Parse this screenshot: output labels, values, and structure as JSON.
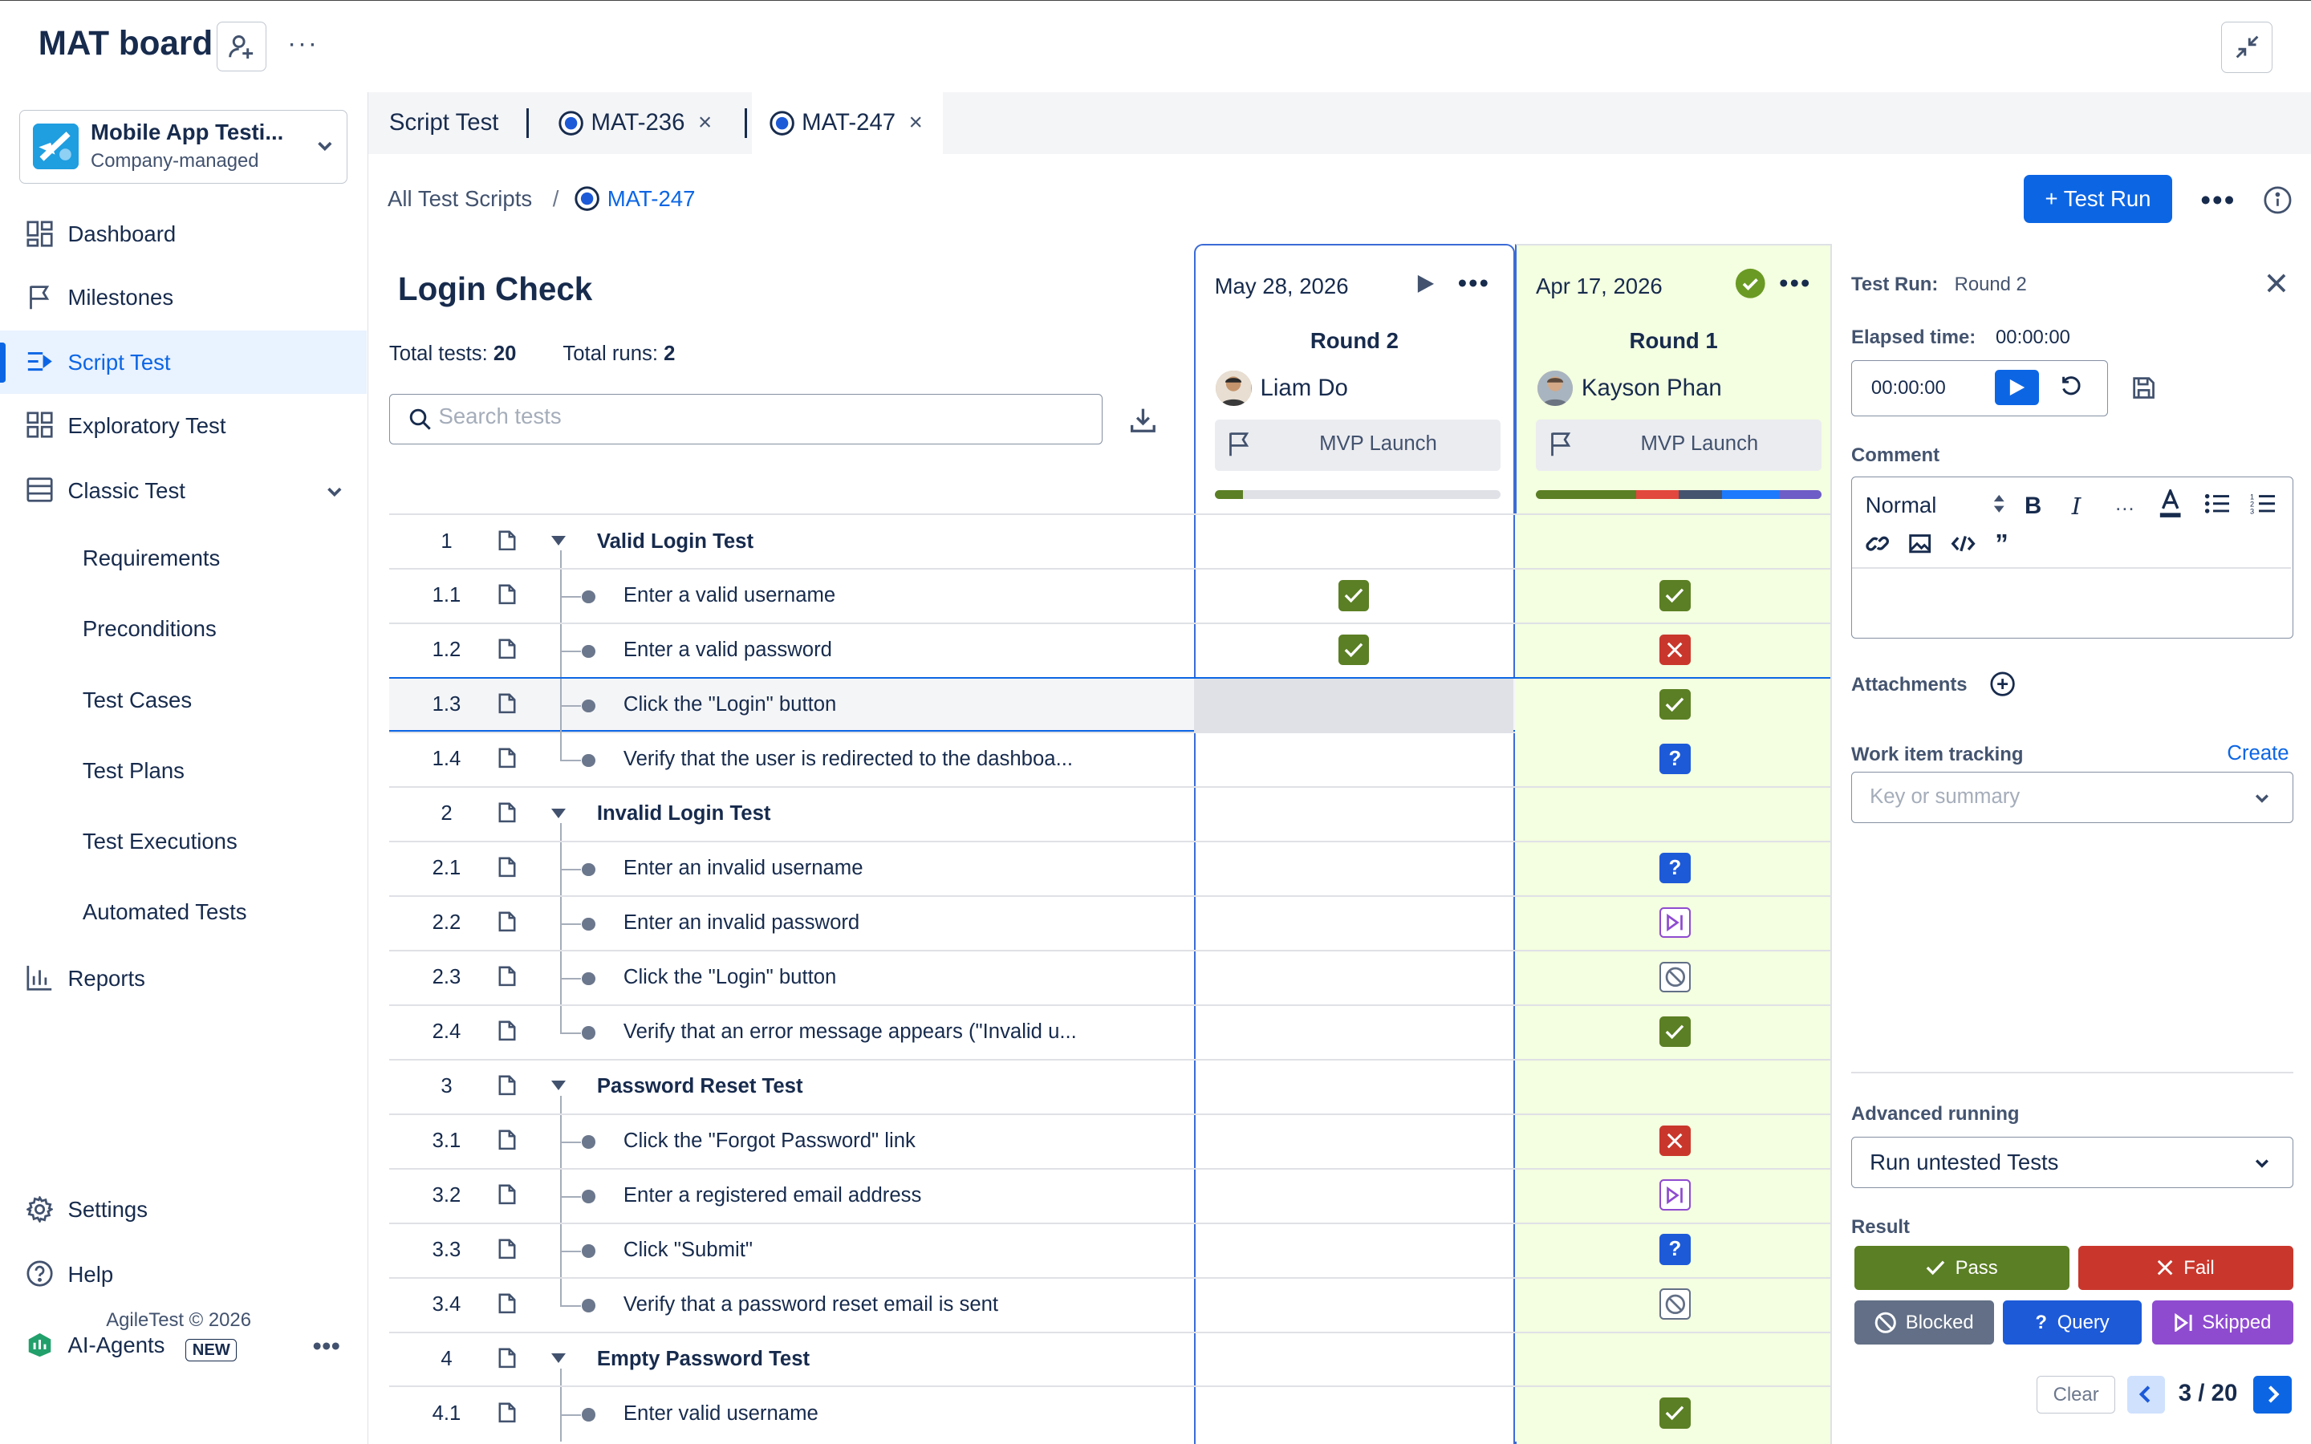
{
  "header": {
    "board_title": "MAT board",
    "more": "···"
  },
  "project": {
    "name": "Mobile App Testi...",
    "type": "Company-managed"
  },
  "sidebar": {
    "items": [
      {
        "label": "Dashboard",
        "icon": "dashboard-icon"
      },
      {
        "label": "Milestones",
        "icon": "flag-icon"
      },
      {
        "label": "Script Test",
        "icon": "script-icon"
      },
      {
        "label": "Exploratory Test",
        "icon": "grid-icon"
      },
      {
        "label": "Classic Test",
        "icon": "list-icon"
      }
    ],
    "sub_items": [
      "Requirements",
      "Preconditions",
      "Test Cases",
      "Test Plans",
      "Test Executions",
      "Automated Tests"
    ],
    "reports": "Reports",
    "settings": "Settings",
    "help": "Help",
    "agents": "AI-Agents",
    "agents_badge": "NEW",
    "copyright": "AgileTest © 2026"
  },
  "tabs": [
    {
      "label": "Script Test"
    },
    {
      "label": "MAT-236",
      "close": "×"
    },
    {
      "label": "MAT-247",
      "close": "×"
    }
  ],
  "breadcrumb": {
    "all": "All Test Scripts",
    "sep": "/",
    "current": "MAT-247"
  },
  "toolbar": {
    "test_run": "+ Test Run"
  },
  "script": {
    "title": "Login Check",
    "total_tests_label": "Total tests:",
    "total_tests": "20",
    "total_runs_label": "Total runs:",
    "total_runs": "2",
    "search_placeholder": "Search tests"
  },
  "runs": [
    {
      "date": "May 28, 2026",
      "round": "Round 2",
      "user": "Liam Do",
      "milestone": "MVP Launch",
      "progress": [
        {
          "color": "#5b7f24",
          "fraction": 0.1
        }
      ]
    },
    {
      "date": "Apr 17, 2026",
      "round": "Round 1",
      "user": "Kayson Phan",
      "milestone": "MVP Launch",
      "progress": [
        {
          "color": "#5b7f24",
          "fraction": 0.35
        },
        {
          "color": "#e2483d",
          "fraction": 0.15
        },
        {
          "color": "#44546f",
          "fraction": 0.15
        },
        {
          "color": "#1d7afc",
          "fraction": 0.2
        },
        {
          "color": "#6e5dc6",
          "fraction": 0.15
        }
      ]
    }
  ],
  "rows": [
    {
      "num": "1",
      "text": "Valid Login Test",
      "group": true,
      "r1": "",
      "r2": ""
    },
    {
      "num": "1.1",
      "text": "Enter a valid username",
      "group": false,
      "r1": "pass",
      "r2": "pass"
    },
    {
      "num": "1.2",
      "text": "Enter a valid password",
      "group": false,
      "r1": "pass",
      "r2": "fail"
    },
    {
      "num": "1.3",
      "text": "Click the \"Login\" button",
      "group": false,
      "r1": "",
      "r2": "pass",
      "selected": true
    },
    {
      "num": "1.4",
      "text": "Verify that the user is redirected to the dashboa...",
      "group": false,
      "r1": "",
      "r2": "query",
      "last": true
    },
    {
      "num": "2",
      "text": "Invalid Login Test",
      "group": true,
      "r1": "",
      "r2": ""
    },
    {
      "num": "2.1",
      "text": "Enter an invalid username",
      "group": false,
      "r1": "",
      "r2": "query"
    },
    {
      "num": "2.2",
      "text": "Enter an invalid password",
      "group": false,
      "r1": "",
      "r2": "skipped"
    },
    {
      "num": "2.3",
      "text": "Click the \"Login\" button",
      "group": false,
      "r1": "",
      "r2": "blocked"
    },
    {
      "num": "2.4",
      "text": "Verify that an error message appears (\"Invalid u...",
      "group": false,
      "r1": "",
      "r2": "pass",
      "last": true
    },
    {
      "num": "3",
      "text": "Password Reset Test",
      "group": true,
      "r1": "",
      "r2": ""
    },
    {
      "num": "3.1",
      "text": "Click the \"Forgot Password\" link",
      "group": false,
      "r1": "",
      "r2": "fail"
    },
    {
      "num": "3.2",
      "text": "Enter a registered email address",
      "group": false,
      "r1": "",
      "r2": "skipped"
    },
    {
      "num": "3.3",
      "text": "Click \"Submit\"",
      "group": false,
      "r1": "",
      "r2": "query"
    },
    {
      "num": "3.4",
      "text": "Verify that a password reset email is sent",
      "group": false,
      "r1": "",
      "r2": "blocked",
      "last": true
    },
    {
      "num": "4",
      "text": "Empty Password Test",
      "group": true,
      "r1": "",
      "r2": ""
    },
    {
      "num": "4.1",
      "text": "Enter valid username",
      "group": false,
      "r1": "",
      "r2": "pass"
    }
  ],
  "status_colors": {
    "pass": "#5b7f24",
    "fail": "#c9372c",
    "query": "#1d5ad8",
    "skipped": "#8f4bd0",
    "blocked": "#626f86"
  },
  "panel": {
    "test_run_label": "Test Run:",
    "test_run_value": "Round 2",
    "elapsed_label": "Elapsed time:",
    "elapsed_value": "00:00:00",
    "timer_value": "00:00:00",
    "comment_label": "Comment",
    "format": "Normal",
    "attachments_label": "Attachments",
    "tracking_label": "Work item tracking",
    "create": "Create",
    "tracking_placeholder": "Key or summary",
    "advanced_label": "Advanced running",
    "advanced_value": "Run untested Tests",
    "result_label": "Result",
    "pass": "Pass",
    "fail": "Fail",
    "blocked": "Blocked",
    "query": "Query",
    "skipped": "Skipped",
    "clear": "Clear",
    "page": "3 / 20"
  }
}
